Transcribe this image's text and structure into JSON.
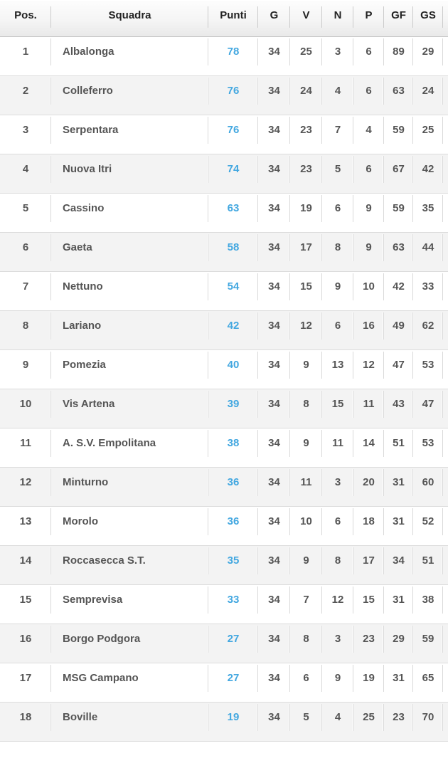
{
  "chart_data": {
    "type": "table",
    "title": "League standings (Squadra / Punti table)",
    "columns": [
      {
        "key": "pos",
        "label": "Pos."
      },
      {
        "key": "team",
        "label": "Squadra"
      },
      {
        "key": "punti",
        "label": "Punti"
      },
      {
        "key": "g",
        "label": "G"
      },
      {
        "key": "v",
        "label": "V"
      },
      {
        "key": "n",
        "label": "N"
      },
      {
        "key": "p",
        "label": "P"
      },
      {
        "key": "gf",
        "label": "GF"
      },
      {
        "key": "gs",
        "label": "GS"
      }
    ],
    "rows": [
      {
        "pos": "1",
        "team": "Albalonga",
        "punti": "78",
        "g": "34",
        "v": "25",
        "n": "3",
        "p": "6",
        "gf": "89",
        "gs": "29"
      },
      {
        "pos": "2",
        "team": "Colleferro",
        "punti": "76",
        "g": "34",
        "v": "24",
        "n": "4",
        "p": "6",
        "gf": "63",
        "gs": "24"
      },
      {
        "pos": "3",
        "team": "Serpentara",
        "punti": "76",
        "g": "34",
        "v": "23",
        "n": "7",
        "p": "4",
        "gf": "59",
        "gs": "25"
      },
      {
        "pos": "4",
        "team": "Nuova Itri",
        "punti": "74",
        "g": "34",
        "v": "23",
        "n": "5",
        "p": "6",
        "gf": "67",
        "gs": "42"
      },
      {
        "pos": "5",
        "team": "Cassino",
        "punti": "63",
        "g": "34",
        "v": "19",
        "n": "6",
        "p": "9",
        "gf": "59",
        "gs": "35"
      },
      {
        "pos": "6",
        "team": "Gaeta",
        "punti": "58",
        "g": "34",
        "v": "17",
        "n": "8",
        "p": "9",
        "gf": "63",
        "gs": "44"
      },
      {
        "pos": "7",
        "team": "Nettuno",
        "punti": "54",
        "g": "34",
        "v": "15",
        "n": "9",
        "p": "10",
        "gf": "42",
        "gs": "33"
      },
      {
        "pos": "8",
        "team": "Lariano",
        "punti": "42",
        "g": "34",
        "v": "12",
        "n": "6",
        "p": "16",
        "gf": "49",
        "gs": "62"
      },
      {
        "pos": "9",
        "team": "Pomezia",
        "punti": "40",
        "g": "34",
        "v": "9",
        "n": "13",
        "p": "12",
        "gf": "47",
        "gs": "53"
      },
      {
        "pos": "10",
        "team": "Vis Artena",
        "punti": "39",
        "g": "34",
        "v": "8",
        "n": "15",
        "p": "11",
        "gf": "43",
        "gs": "47"
      },
      {
        "pos": "11",
        "team": "A. S.V. Empolitana",
        "punti": "38",
        "g": "34",
        "v": "9",
        "n": "11",
        "p": "14",
        "gf": "51",
        "gs": "53"
      },
      {
        "pos": "12",
        "team": "Minturno",
        "punti": "36",
        "g": "34",
        "v": "11",
        "n": "3",
        "p": "20",
        "gf": "31",
        "gs": "60"
      },
      {
        "pos": "13",
        "team": "Morolo",
        "punti": "36",
        "g": "34",
        "v": "10",
        "n": "6",
        "p": "18",
        "gf": "31",
        "gs": "52"
      },
      {
        "pos": "14",
        "team": "Roccasecca S.T.",
        "punti": "35",
        "g": "34",
        "v": "9",
        "n": "8",
        "p": "17",
        "gf": "34",
        "gs": "51"
      },
      {
        "pos": "15",
        "team": "Semprevisa",
        "punti": "33",
        "g": "34",
        "v": "7",
        "n": "12",
        "p": "15",
        "gf": "31",
        "gs": "38"
      },
      {
        "pos": "16",
        "team": "Borgo Podgora",
        "punti": "27",
        "g": "34",
        "v": "8",
        "n": "3",
        "p": "23",
        "gf": "29",
        "gs": "59"
      },
      {
        "pos": "17",
        "team": "MSG Campano",
        "punti": "27",
        "g": "34",
        "v": "6",
        "n": "9",
        "p": "19",
        "gf": "31",
        "gs": "65"
      },
      {
        "pos": "18",
        "team": "Boville",
        "punti": "19",
        "g": "34",
        "v": "5",
        "n": "4",
        "p": "25",
        "gf": "23",
        "gs": "70"
      }
    ],
    "layout": {
      "grid": "on",
      "zebra_striping": true,
      "points_column_highlighted": true
    }
  },
  "colors": {
    "points_accent": "#42a7e0",
    "header_text": "#222222",
    "cell_text": "#555555",
    "row_bg": "#ffffff",
    "row_alt_bg": "#f3f3f3"
  }
}
